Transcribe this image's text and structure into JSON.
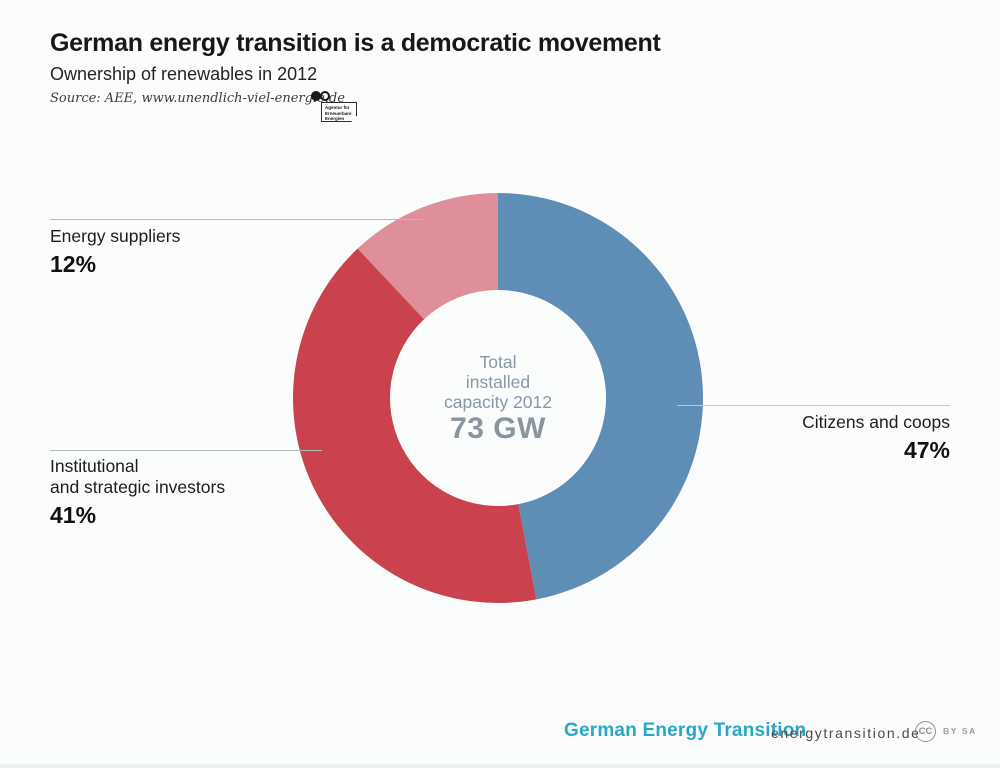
{
  "page": {
    "background": "#fafdfc"
  },
  "header": {
    "title": "German energy transition is a democratic movement",
    "subtitle": "Ownership of renewables in 2012",
    "source": "Source: AEE, www.unendlich-viel-energie.de",
    "aee_logo_lines": [
      "Agentur für",
      "Erneuerbare",
      "Energien"
    ]
  },
  "chart_data": {
    "type": "pie",
    "subtype": "donut",
    "start_angle_deg": 0,
    "direction": "clockwise",
    "center_label_lines": [
      "Total",
      "installed",
      "capacity 2012"
    ],
    "center_value": "73 GW",
    "series": [
      {
        "name": "Citizens and coops",
        "value": 47,
        "color": "#5e8db6"
      },
      {
        "name": "Institutional and strategic investors",
        "value": 41,
        "color": "#c9424d"
      },
      {
        "name": "Energy suppliers",
        "value": 12,
        "color": "#df8f99"
      }
    ]
  },
  "callouts": {
    "energy_suppliers": {
      "label": "Energy suppliers",
      "value": "12%"
    },
    "institutional": {
      "label_lines": [
        "Institutional",
        "and strategic investors"
      ],
      "value": "41%"
    },
    "citizens": {
      "label": "Citizens and coops",
      "value": "47%"
    }
  },
  "footer": {
    "brand": "German Energy Transition",
    "site": "energytransition.de",
    "license_abbr": "CC",
    "license_terms": "BY SA"
  }
}
